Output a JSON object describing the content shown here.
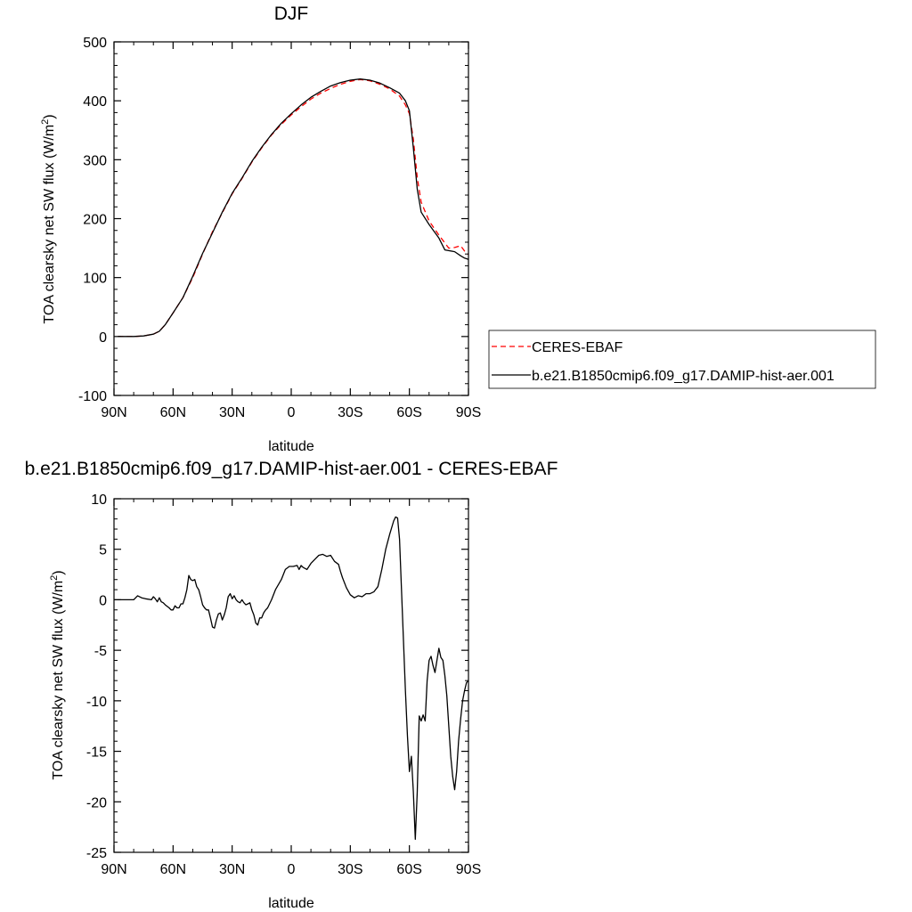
{
  "chart_data": [
    {
      "type": "line",
      "title": "DJF",
      "xlabel": "latitude",
      "ylabel": "TOA clearsky net SW flux (W/m",
      "ylabel_sup": "2",
      "ylabel_tail": ")",
      "xlim": [
        90,
        -90
      ],
      "ylim": [
        -100,
        500
      ],
      "x_ticks": [
        90,
        60,
        30,
        0,
        -30,
        -60,
        -90
      ],
      "x_tick_labels": [
        "90N",
        "60N",
        "30N",
        "0",
        "30S",
        "60S",
        "90S"
      ],
      "y_ticks": [
        -100,
        0,
        100,
        200,
        300,
        400,
        500
      ],
      "y_tick_labels": [
        "-100",
        "0",
        "100",
        "200",
        "300",
        "400",
        "500"
      ],
      "legend_position": "right",
      "series": [
        {
          "name": "CERES-EBAF",
          "color": "#ff0000",
          "dash": "dashed",
          "points": [
            [
              88,
              0
            ],
            [
              80,
              0
            ],
            [
              75,
              1
            ],
            [
              70,
              4
            ],
            [
              67,
              9
            ],
            [
              64,
              20
            ],
            [
              60,
              40
            ],
            [
              55,
              66
            ],
            [
              50,
              100
            ],
            [
              45,
              140
            ],
            [
              40,
              178
            ],
            [
              35,
              210
            ],
            [
              30,
              242
            ],
            [
              25,
              268
            ],
            [
              20,
              296
            ],
            [
              15,
              320
            ],
            [
              10,
              342
            ],
            [
              5,
              360
            ],
            [
              0,
              376
            ],
            [
              -5,
              390
            ],
            [
              -10,
              403
            ],
            [
              -15,
              413
            ],
            [
              -20,
              421
            ],
            [
              -25,
              428
            ],
            [
              -30,
              433
            ],
            [
              -35,
              436
            ],
            [
              -40,
              434
            ],
            [
              -45,
              428
            ],
            [
              -50,
              420
            ],
            [
              -55,
              408
            ],
            [
              -58,
              393
            ],
            [
              -60,
              378
            ],
            [
              -62,
              335
            ],
            [
              -64,
              270
            ],
            [
              -66,
              228
            ],
            [
              -70,
              196
            ],
            [
              -75,
              172
            ],
            [
              -80,
              150
            ],
            [
              -83,
              151
            ],
            [
              -86,
              154
            ],
            [
              -88,
              145
            ],
            [
              -90,
              139
            ]
          ]
        },
        {
          "name": "b.e21.B1850cmip6.f09_g17.DAMIP-hist-aer.001",
          "color": "#000000",
          "dash": "solid",
          "points": [
            [
              88,
              0
            ],
            [
              80,
              0
            ],
            [
              75,
              1
            ],
            [
              70,
              4
            ],
            [
              67,
              9
            ],
            [
              64,
              20
            ],
            [
              60,
              40
            ],
            [
              55,
              66
            ],
            [
              50,
              102
            ],
            [
              45,
              141
            ],
            [
              40,
              176
            ],
            [
              35,
              211
            ],
            [
              30,
              243
            ],
            [
              25,
              269
            ],
            [
              20,
              297
            ],
            [
              15,
              321
            ],
            [
              10,
              343
            ],
            [
              5,
              362
            ],
            [
              0,
              378
            ],
            [
              -5,
              393
            ],
            [
              -10,
              406
            ],
            [
              -15,
              416
            ],
            [
              -20,
              425
            ],
            [
              -25,
              431
            ],
            [
              -30,
              435
            ],
            [
              -35,
              437
            ],
            [
              -40,
              435
            ],
            [
              -45,
              430
            ],
            [
              -50,
              422
            ],
            [
              -55,
              413
            ],
            [
              -58,
              400
            ],
            [
              -60,
              383
            ],
            [
              -62,
              320
            ],
            [
              -64,
              250
            ],
            [
              -66,
              211
            ],
            [
              -70,
              190
            ],
            [
              -75,
              167
            ],
            [
              -78,
              147
            ],
            [
              -83,
              144
            ],
            [
              -86,
              137
            ],
            [
              -88,
              133
            ],
            [
              -90,
              131
            ]
          ]
        }
      ]
    },
    {
      "type": "line",
      "title": "b.e21.B1850cmip6.f09_g17.DAMIP-hist-aer.001 - CERES-EBAF",
      "xlabel": "latitude",
      "ylabel": "TOA clearsky net SW flux (W/m",
      "ylabel_sup": "2",
      "ylabel_tail": ")",
      "xlim": [
        90,
        -90
      ],
      "ylim": [
        -25,
        10
      ],
      "x_ticks": [
        90,
        60,
        30,
        0,
        -30,
        -60,
        -90
      ],
      "x_tick_labels": [
        "90N",
        "60N",
        "30N",
        "0",
        "30S",
        "60S",
        "90S"
      ],
      "y_ticks": [
        -25,
        -20,
        -15,
        -10,
        -5,
        0,
        5,
        10
      ],
      "y_tick_labels": [
        "-25",
        "-20",
        "-15",
        "-10",
        "-5",
        "0",
        "5",
        "10"
      ],
      "series": [
        {
          "color": "#000000",
          "dash": "solid",
          "points": [
            [
              90,
              0
            ],
            [
              80,
              0
            ],
            [
              78,
              0.4
            ],
            [
              76,
              0.2
            ],
            [
              74,
              0.1
            ],
            [
              71,
              0
            ],
            [
              70,
              0.3
            ],
            [
              69,
              0.1
            ],
            [
              68,
              -0.2
            ],
            [
              67,
              0.2
            ],
            [
              66,
              -0.2
            ],
            [
              65,
              -0.3
            ],
            [
              64,
              -0.5
            ],
            [
              62,
              -0.8
            ],
            [
              61,
              -1
            ],
            [
              60,
              -1
            ],
            [
              59,
              -0.6
            ],
            [
              58,
              -0.8
            ],
            [
              57,
              -0.8
            ],
            [
              56,
              -0.4
            ],
            [
              55,
              -0.4
            ],
            [
              54,
              0.2
            ],
            [
              53,
              1
            ],
            [
              52,
              2.4
            ],
            [
              51,
              2
            ],
            [
              50,
              1.9
            ],
            [
              49,
              2
            ],
            [
              48,
              1.3
            ],
            [
              47,
              1
            ],
            [
              46,
              0.3
            ],
            [
              45,
              -0.5
            ],
            [
              44,
              -0.8
            ],
            [
              43,
              -1
            ],
            [
              42,
              -1
            ],
            [
              41,
              -1.8
            ],
            [
              40,
              -2.7
            ],
            [
              39,
              -2.8
            ],
            [
              38,
              -2
            ],
            [
              37,
              -1.4
            ],
            [
              36,
              -1.3
            ],
            [
              35,
              -2
            ],
            [
              34,
              -1.5
            ],
            [
              33,
              -0.8
            ],
            [
              32,
              0.3
            ],
            [
              31,
              0.6
            ],
            [
              30,
              0.1
            ],
            [
              29,
              0.4
            ],
            [
              28,
              0
            ],
            [
              27,
              -0.2
            ],
            [
              26,
              -0.3
            ],
            [
              25,
              0
            ],
            [
              24,
              -0.3
            ],
            [
              23,
              -0.5
            ],
            [
              22,
              -0.4
            ],
            [
              21,
              -0.3
            ],
            [
              20,
              -1
            ],
            [
              19,
              -1.5
            ],
            [
              18,
              -2.3
            ],
            [
              17,
              -2.5
            ],
            [
              16,
              -1.8
            ],
            [
              15,
              -1.8
            ],
            [
              14,
              -1.3
            ],
            [
              13,
              -1
            ],
            [
              12,
              -0.8
            ],
            [
              10,
              0
            ],
            [
              8,
              1
            ],
            [
              5,
              2
            ],
            [
              3,
              3
            ],
            [
              1,
              3.3
            ],
            [
              -1,
              3.3
            ],
            [
              -3,
              3.4
            ],
            [
              -4,
              3
            ],
            [
              -5,
              3.4
            ],
            [
              -6,
              3.2
            ],
            [
              -8,
              3
            ],
            [
              -10,
              3.6
            ],
            [
              -12,
              4
            ],
            [
              -14,
              4.4
            ],
            [
              -16,
              4.5
            ],
            [
              -18,
              4.3
            ],
            [
              -20,
              4.4
            ],
            [
              -22,
              3.8
            ],
            [
              -24,
              3.5
            ],
            [
              -25,
              2.8
            ],
            [
              -26,
              2.2
            ],
            [
              -28,
              1.2
            ],
            [
              -30,
              0.5
            ],
            [
              -32,
              0.2
            ],
            [
              -34,
              0.4
            ],
            [
              -36,
              0.3
            ],
            [
              -38,
              0.6
            ],
            [
              -40,
              0.6
            ],
            [
              -42,
              0.8
            ],
            [
              -44,
              1.3
            ],
            [
              -46,
              3
            ],
            [
              -48,
              5
            ],
            [
              -50,
              6.5
            ],
            [
              -52,
              7.8
            ],
            [
              -53,
              8.2
            ],
            [
              -54,
              8.1
            ],
            [
              -55,
              6
            ],
            [
              -56,
              1
            ],
            [
              -57,
              -4
            ],
            [
              -58,
              -9
            ],
            [
              -59,
              -13.5
            ],
            [
              -60,
              -17
            ],
            [
              -61,
              -15.5
            ],
            [
              -62,
              -19
            ],
            [
              -63,
              -23.7
            ],
            [
              -64,
              -19
            ],
            [
              -65,
              -11.5
            ],
            [
              -66,
              -12
            ],
            [
              -67,
              -11.4
            ],
            [
              -68,
              -12
            ],
            [
              -69,
              -8
            ],
            [
              -70,
              -6
            ],
            [
              -71,
              -5.6
            ],
            [
              -72,
              -6.5
            ],
            [
              -73,
              -7.2
            ],
            [
              -74,
              -6
            ],
            [
              -75,
              -4.8
            ],
            [
              -76,
              -5.7
            ],
            [
              -77,
              -6
            ],
            [
              -78,
              -7.5
            ],
            [
              -79,
              -9.5
            ],
            [
              -80,
              -12.5
            ],
            [
              -81,
              -15.5
            ],
            [
              -82,
              -17.5
            ],
            [
              -83,
              -18.8
            ],
            [
              -84,
              -17
            ],
            [
              -85,
              -14
            ],
            [
              -86,
              -11.8
            ],
            [
              -87,
              -10
            ],
            [
              -88,
              -9
            ],
            [
              -89,
              -8.2
            ],
            [
              -90,
              -8
            ]
          ]
        }
      ]
    }
  ]
}
